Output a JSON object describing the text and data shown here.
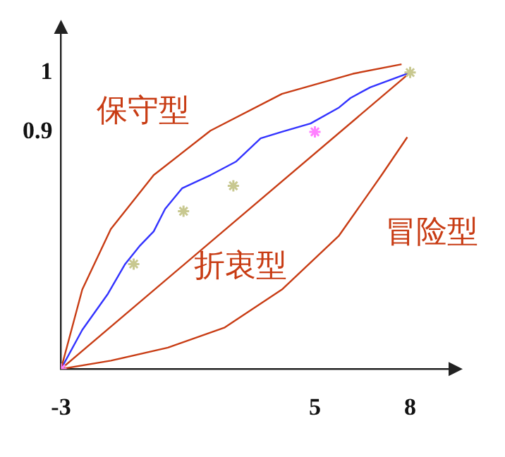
{
  "chart_data": {
    "type": "line",
    "xlim": [
      -3,
      9.3
    ],
    "ylim": [
      0.5,
      1.07
    ],
    "xticks": [
      -3,
      5,
      8
    ],
    "yticks": [
      0.9,
      1
    ],
    "grid": false,
    "legend": false,
    "line_style": "solid",
    "annotations": [
      "保守型",
      "折衷型",
      "冒险型"
    ],
    "series": [
      {
        "marker": "none",
        "color": "#c83c14",
        "x": [
          -3,
          -2.33,
          -1.43,
          -0.08,
          1.71,
          3.96,
          6.2,
          7.73
        ],
        "values": [
          0.5,
          0.634,
          0.736,
          0.827,
          0.902,
          0.964,
          0.998,
          1.014
        ]
      },
      {
        "marker": "none",
        "color": "#c83c14",
        "x": [
          -3,
          8
        ],
        "values": [
          0.5,
          1
        ]
      },
      {
        "marker": "none",
        "color": "#c83c14",
        "x": [
          -3,
          -1.43,
          0.37,
          2.16,
          3.96,
          5.76,
          7.1,
          7.91
        ],
        "values": [
          0.5,
          0.514,
          0.536,
          0.57,
          0.634,
          0.725,
          0.827,
          0.891
        ]
      },
      {
        "marker": "none",
        "color": "#3333ff",
        "x": [
          -3,
          -2.33,
          -1.52,
          -0.98,
          -0.53,
          -0.08,
          0.28,
          0.82,
          1.71,
          2.52,
          3.29,
          3.96,
          4.86,
          5.76,
          6.12,
          6.74,
          8
        ],
        "values": [
          0.5,
          0.566,
          0.627,
          0.677,
          0.707,
          0.732,
          0.77,
          0.805,
          0.827,
          0.85,
          0.889,
          0.9,
          0.914,
          0.941,
          0.957,
          0.975,
          1
        ]
      },
      {
        "type": "scatter",
        "marker": "cross",
        "color": "#c8c890",
        "x": [
          -0.71,
          0.86,
          2.43,
          8
        ],
        "values": [
          0.677,
          0.766,
          0.809,
          1
        ]
      },
      {
        "type": "scatter",
        "marker": "cross",
        "color": "#ff80ff",
        "x": [
          -3,
          5
        ],
        "values": [
          0.5,
          0.9
        ]
      }
    ]
  }
}
